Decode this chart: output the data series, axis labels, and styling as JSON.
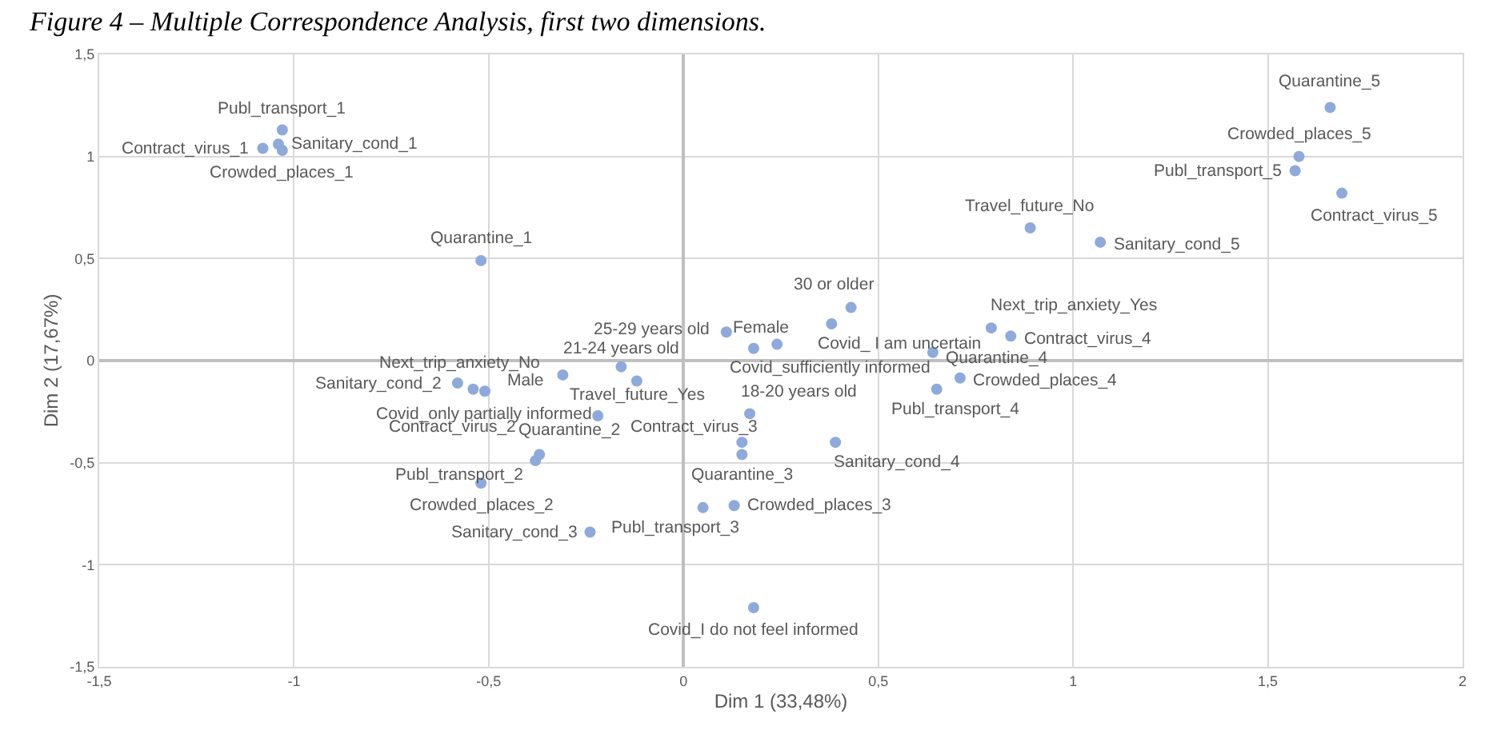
{
  "chart_data": {
    "type": "scatter",
    "title": "Figure 4 – Multiple Correspondence Analysis, first two dimensions.",
    "xlabel": "Dim 1 (33,48%)",
    "ylabel": "Dim 2 (17,67%)",
    "x": [
      -1.03,
      -1.08,
      -1.04,
      -1.03,
      -0.52,
      1.66,
      1.58,
      1.57,
      1.69,
      0.89,
      1.07,
      0.43,
      0.11,
      0.24,
      0.38,
      0.18,
      0.79,
      0.84,
      0.64,
      0.71,
      0.65,
      0.17,
      0.15,
      0.15,
      0.39,
      0.13,
      0.05,
      0.18,
      -0.58,
      -0.54,
      -0.51,
      -0.31,
      -0.16,
      -0.12,
      -0.22,
      -0.37,
      -0.38,
      -0.52,
      -0.24
    ],
    "values": [
      1.13,
      1.04,
      1.06,
      1.03,
      0.49,
      1.24,
      1.0,
      0.93,
      0.82,
      0.65,
      0.58,
      0.26,
      0.14,
      0.08,
      0.18,
      0.06,
      0.16,
      0.12,
      0.04,
      -0.085,
      -0.14,
      -0.26,
      -0.4,
      -0.46,
      -0.4,
      -0.71,
      -0.72,
      -1.21,
      -0.11,
      -0.14,
      -0.15,
      -0.07,
      -0.03,
      -0.1,
      -0.27,
      -0.46,
      -0.49,
      -0.6,
      -0.84
    ],
    "color": "#8eaadb",
    "marker": "circle",
    "xlim": [
      -1.5,
      2
    ],
    "ylim": [
      -1.5,
      1.5
    ],
    "xticks": [
      {
        "value": -1.5,
        "label": "-1,5"
      },
      -1,
      {
        "value": -0.5,
        "label": "-0,5"
      },
      0,
      {
        "value": 0.5,
        "label": "0,5"
      },
      1,
      {
        "value": 1.5,
        "label": "1,5"
      },
      2
    ],
    "yticks": [
      {
        "value": -1.5,
        "label": "-1,5"
      },
      -1,
      {
        "value": -0.5,
        "label": "-0,5"
      },
      0,
      {
        "value": 0.5,
        "label": "0,5"
      },
      1,
      {
        "value": 1.5,
        "label": "1,5"
      }
    ],
    "grid": true,
    "annotations": [
      {
        "text": "Publ_transport_1",
        "x": -1.03,
        "y": 1.13
      },
      {
        "text": "Contract_virus_1",
        "x": -1.08,
        "y": 1.04
      },
      {
        "text": "Sanitary_cond_1",
        "x": -1.04,
        "y": 1.06
      },
      {
        "text": "Crowded_places_1",
        "x": -1.03,
        "y": 1.03
      },
      {
        "text": "Quarantine_1",
        "x": -0.52,
        "y": 0.49
      },
      {
        "text": "Quarantine_5",
        "x": 1.66,
        "y": 1.24
      },
      {
        "text": "Crowded_places_5",
        "x": 1.58,
        "y": 1.0
      },
      {
        "text": "Publ_transport_5",
        "x": 1.57,
        "y": 0.93
      },
      {
        "text": "Contract_virus_5",
        "x": 1.69,
        "y": 0.82
      },
      {
        "text": "Travel_future_No",
        "x": 0.89,
        "y": 0.65
      },
      {
        "text": "Sanitary_cond_5",
        "x": 1.07,
        "y": 0.58
      },
      {
        "text": "30 or older",
        "x": 0.43,
        "y": 0.26
      },
      {
        "text": "25-29 years old",
        "x": 0.11,
        "y": 0.14
      },
      {
        "text": "Female",
        "x": 0.24,
        "y": 0.08
      },
      {
        "text": "Covid_ I am uncertain",
        "x": 0.38,
        "y": 0.18
      },
      {
        "text": "Covid_sufficiently informed",
        "x": 0.18,
        "y": 0.06
      },
      {
        "text": "Next_trip_anxiety_Yes",
        "x": 0.79,
        "y": 0.16
      },
      {
        "text": "Contract_virus_4",
        "x": 0.84,
        "y": 0.12
      },
      {
        "text": "Quarantine_4",
        "x": 0.64,
        "y": 0.04
      },
      {
        "text": "Crowded_places_4",
        "x": 0.71,
        "y": -0.085
      },
      {
        "text": "Publ_transport_4",
        "x": 0.65,
        "y": -0.14
      },
      {
        "text": "18-20 years old",
        "x": 0.17,
        "y": -0.26
      },
      {
        "text": "Contract_virus_3",
        "x": 0.15,
        "y": -0.4
      },
      {
        "text": "Quarantine_3",
        "x": 0.15,
        "y": -0.46
      },
      {
        "text": "Sanitary_cond_4",
        "x": 0.39,
        "y": -0.4
      },
      {
        "text": "Crowded_places_3",
        "x": 0.13,
        "y": -0.71
      },
      {
        "text": "Publ_transport_3",
        "x": 0.05,
        "y": -0.72
      },
      {
        "text": "Covid_I do not feel informed",
        "x": 0.18,
        "y": -1.21
      },
      {
        "text": "Sanitary_cond_2",
        "x": -0.58,
        "y": -0.11
      },
      {
        "text": "Next_trip_anxiety_No",
        "x": -0.54,
        "y": -0.14
      },
      {
        "text": "Covid_only partially informed",
        "x": -0.51,
        "y": -0.15
      },
      {
        "text": "Male",
        "x": -0.31,
        "y": -0.07
      },
      {
        "text": "21-24 years old",
        "x": -0.16,
        "y": -0.03
      },
      {
        "text": "Travel_future_Yes",
        "x": -0.12,
        "y": -0.1
      },
      {
        "text": "Quarantine_2",
        "x": -0.22,
        "y": -0.27
      },
      {
        "text": "Contract_virus_2",
        "x": -0.37,
        "y": -0.46
      },
      {
        "text": "Publ_transport_2",
        "x": -0.38,
        "y": -0.49
      },
      {
        "text": "Crowded_places_2",
        "x": -0.52,
        "y": -0.6
      },
      {
        "text": "Sanitary_cond_3",
        "x": -0.24,
        "y": -0.84
      }
    ]
  }
}
